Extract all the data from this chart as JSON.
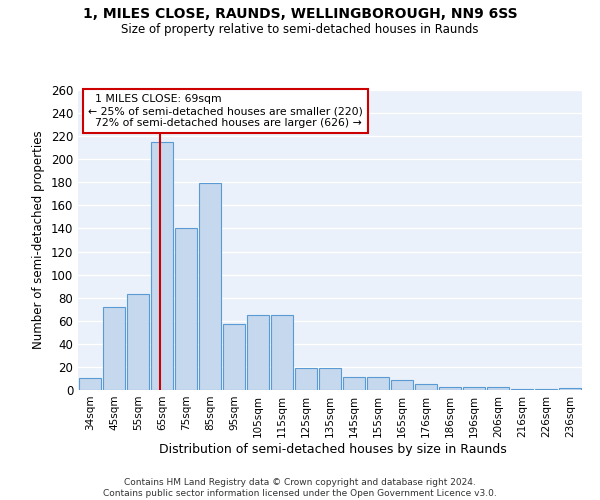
{
  "title1": "1, MILES CLOSE, RAUNDS, WELLINGBOROUGH, NN9 6SS",
  "title2": "Size of property relative to semi-detached houses in Raunds",
  "xlabel": "Distribution of semi-detached houses by size in Raunds",
  "ylabel": "Number of semi-detached properties",
  "footer1": "Contains HM Land Registry data © Crown copyright and database right 2024.",
  "footer2": "Contains public sector information licensed under the Open Government Licence v3.0.",
  "categories": [
    "34sqm",
    "45sqm",
    "55sqm",
    "65sqm",
    "75sqm",
    "85sqm",
    "95sqm",
    "105sqm",
    "115sqm",
    "125sqm",
    "135sqm",
    "145sqm",
    "155sqm",
    "165sqm",
    "176sqm",
    "186sqm",
    "196sqm",
    "206sqm",
    "216sqm",
    "226sqm",
    "236sqm"
  ],
  "values": [
    10,
    72,
    83,
    215,
    140,
    179,
    57,
    65,
    65,
    19,
    19,
    11,
    11,
    9,
    5,
    3,
    3,
    3,
    1,
    1,
    2
  ],
  "bar_color": "#c5d8ed",
  "bar_edge_color": "#5b9bd5",
  "background_color": "#eaf1fa",
  "grid_color": "#ffffff",
  "property_label": "1 MILES CLOSE: 69sqm",
  "pct_smaller": 25,
  "n_smaller": 220,
  "pct_larger": 72,
  "n_larger": 626,
  "vline_bin_index": 3,
  "vline_color": "#cc0000",
  "annotation_box_color": "#cc0000",
  "ylim": [
    0,
    260
  ],
  "yticks": [
    0,
    20,
    40,
    60,
    80,
    100,
    120,
    140,
    160,
    180,
    200,
    220,
    240,
    260
  ]
}
